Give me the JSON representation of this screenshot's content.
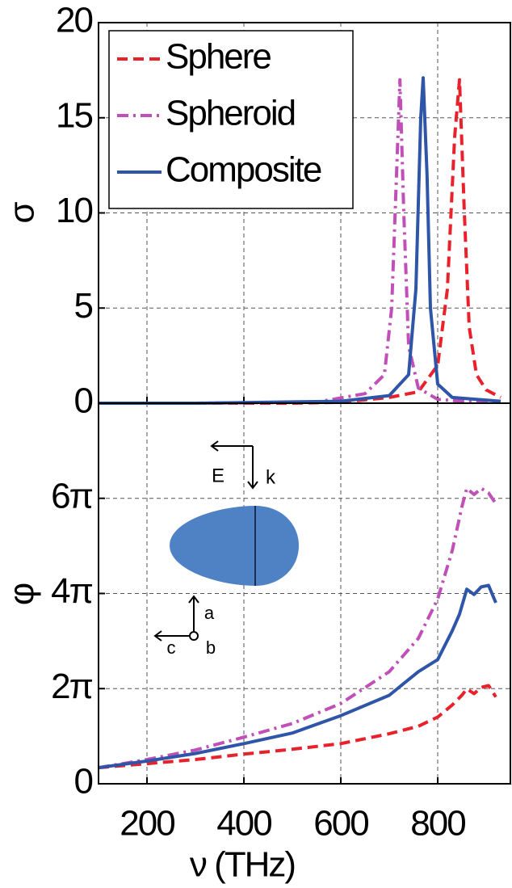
{
  "chart_data": [
    {
      "type": "line",
      "ylabel": "σ",
      "xlim": [
        100,
        950
      ],
      "xticks": [
        200,
        400,
        600,
        800
      ],
      "ylim": [
        0,
        20
      ],
      "yticks": [
        0,
        5,
        10,
        15,
        20
      ],
      "grid": true,
      "legend": "upper left",
      "series": [
        {
          "name": "Sphere",
          "color": "#e8212b",
          "dash": "dashed",
          "x": [
            100,
            300,
            500,
            600,
            700,
            760,
            800,
            820,
            835,
            845,
            855,
            865,
            880,
            900,
            930
          ],
          "values": [
            0,
            0,
            0,
            0.05,
            0.3,
            0.6,
            2,
            6,
            14,
            17,
            10,
            4,
            1.5,
            0.7,
            0.3
          ]
        },
        {
          "name": "Spheroid",
          "color": "#c050b8",
          "dash": "dashdot",
          "x": [
            100,
            300,
            550,
            650,
            690,
            705,
            715,
            722,
            730,
            740,
            760,
            800,
            850,
            930
          ],
          "values": [
            0,
            0,
            0.05,
            0.5,
            1.5,
            5,
            12,
            17,
            10,
            3,
            0.8,
            0.2,
            0.1,
            0.05
          ]
        },
        {
          "name": "Composite",
          "color": "#2f55a8",
          "dash": "solid",
          "x": [
            100,
            300,
            600,
            700,
            740,
            755,
            765,
            770,
            778,
            785,
            800,
            830,
            930
          ],
          "values": [
            0,
            0,
            0.1,
            0.4,
            1.5,
            6,
            15,
            17.1,
            12,
            5,
            1,
            0.3,
            0.1
          ]
        }
      ]
    },
    {
      "type": "line",
      "ylabel": "φ",
      "xlabel": "ν (THz)",
      "xlim": [
        100,
        950
      ],
      "xticks": [
        200,
        400,
        600,
        800
      ],
      "ylim": [
        0,
        25.13
      ],
      "yticks": [
        0,
        {
          "value": 6.283,
          "label": "2π"
        },
        {
          "value": 12.566,
          "label": "4π"
        },
        {
          "value": 18.85,
          "label": "6π"
        }
      ],
      "grid": true,
      "annotations": [
        "E",
        "k",
        "a",
        "b",
        "c"
      ],
      "series": [
        {
          "name": "Sphere",
          "color": "#e8212b",
          "dash": "dashed",
          "x": [
            100,
            200,
            300,
            400,
            500,
            600,
            700,
            760,
            800,
            830,
            850,
            860,
            875,
            890,
            905,
            920
          ],
          "values": [
            1.06,
            1.33,
            1.6,
            1.96,
            2.28,
            2.65,
            3.3,
            3.8,
            4.4,
            5.2,
            5.85,
            6.27,
            5.95,
            6.37,
            6.48,
            5.73
          ]
        },
        {
          "name": "Spheroid",
          "color": "#c050b8",
          "dash": "dashdot",
          "x": [
            100,
            200,
            300,
            400,
            500,
            600,
            700,
            760,
            800,
            830,
            850,
            860,
            875,
            890,
            905,
            920
          ],
          "values": [
            1.06,
            1.6,
            2.23,
            3.08,
            3.98,
            5.3,
            7.4,
            9.6,
            12.2,
            15.4,
            18.3,
            19.5,
            19.1,
            19.5,
            19.2,
            18.5
          ]
        },
        {
          "name": "Composite",
          "color": "#2f55a8",
          "dash": "solid",
          "x": [
            100,
            200,
            300,
            400,
            500,
            600,
            700,
            760,
            800,
            830,
            845,
            860,
            875,
            890,
            905,
            920
          ],
          "values": [
            1.06,
            1.5,
            2.0,
            2.65,
            3.35,
            4.5,
            5.84,
            7.4,
            8.2,
            10.1,
            11.2,
            12.85,
            12.5,
            13.0,
            13.1,
            11.95
          ]
        }
      ]
    }
  ]
}
